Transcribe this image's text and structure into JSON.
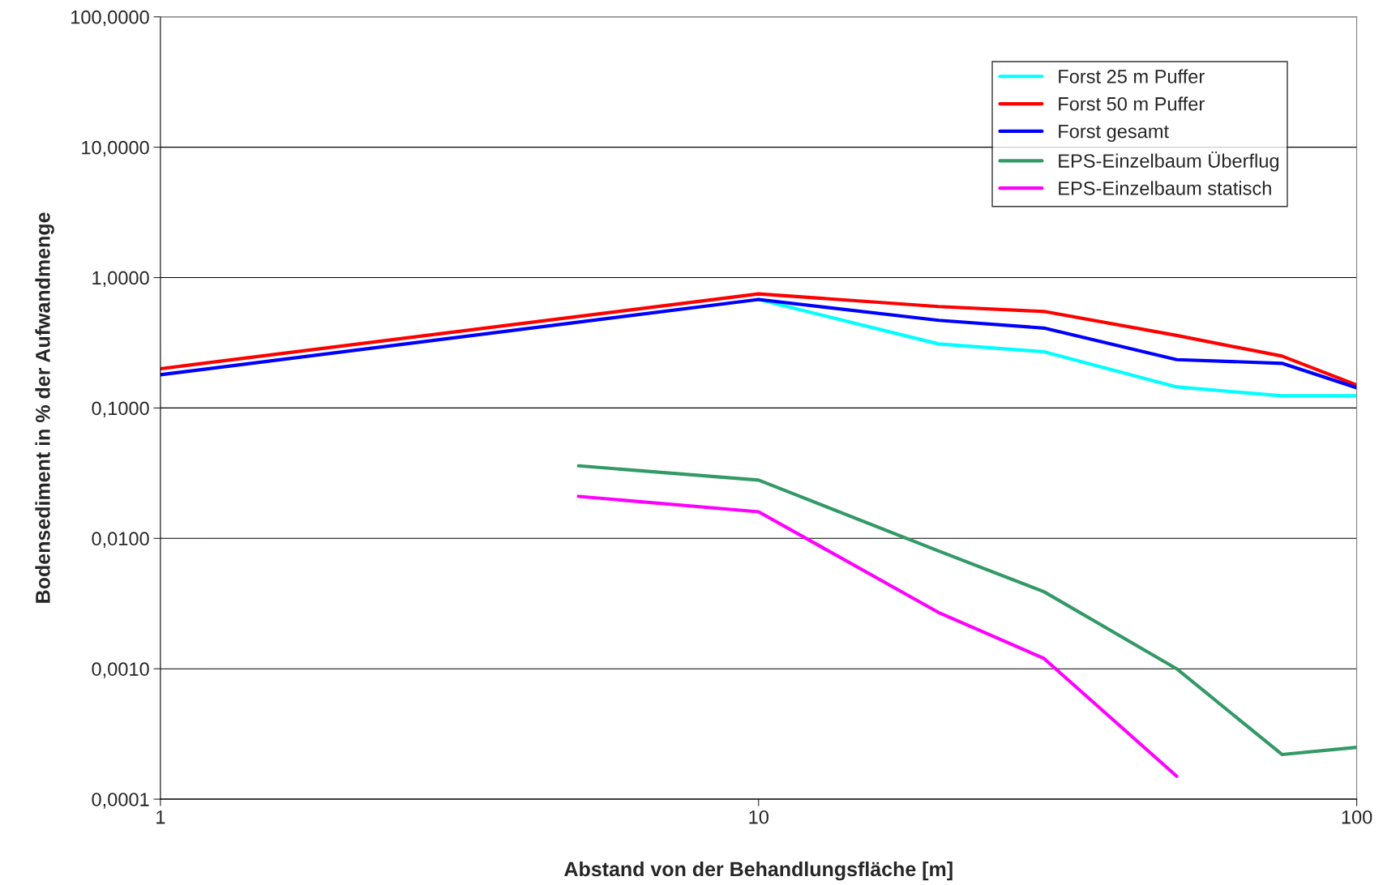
{
  "chart_data": {
    "type": "line",
    "xlabel": "Abstand von der Behandlungsfläche [m]",
    "ylabel": "Bodensediment in % der Aufwandmenge",
    "log": "xy",
    "grid": "y",
    "legend": "top right",
    "marker": "none",
    "line_style": "solid",
    "xlim": [
      1,
      100
    ],
    "xticks": [
      1,
      10,
      100
    ],
    "ylim": [
      0.0001,
      100
    ],
    "yticks": [
      {
        "value": 0.0001,
        "label": "0,0001"
      },
      {
        "value": 0.001,
        "label": "0,0010"
      },
      {
        "value": 0.01,
        "label": "0,0100"
      },
      {
        "value": 0.1,
        "label": "0,1000"
      },
      {
        "value": 1,
        "label": "1,0000"
      },
      {
        "value": 10,
        "label": "10,0000"
      },
      {
        "value": 100,
        "label": "100,0000"
      }
    ],
    "series": [
      {
        "name": "Forst 25 m Puffer",
        "color": "#00ffff",
        "x": [
          10,
          20,
          30,
          50,
          75,
          100
        ],
        "values": [
          0.68,
          0.31,
          0.27,
          0.145,
          0.124,
          0.124
        ]
      },
      {
        "name": "Forst 50 m Puffer",
        "color": "#ff0000",
        "x": [
          1,
          10,
          20,
          30,
          50,
          75,
          100
        ],
        "values": [
          0.2,
          0.75,
          0.6,
          0.55,
          0.36,
          0.25,
          0.15
        ]
      },
      {
        "name": "Forst gesamt",
        "color": "#0000ff",
        "x": [
          1,
          10,
          20,
          30,
          50,
          75,
          100
        ],
        "values": [
          0.18,
          0.68,
          0.47,
          0.41,
          0.235,
          0.22,
          0.143
        ]
      },
      {
        "name": "EPS-Einzelbaum Überflug",
        "color": "#339966",
        "x": [
          5,
          10,
          20,
          30,
          50,
          75,
          100
        ],
        "values": [
          0.036,
          0.028,
          0.008,
          0.0039,
          0.001,
          0.00022,
          0.00025
        ]
      },
      {
        "name": "EPS-Einzelbaum statisch",
        "color": "#ff00ff",
        "x": [
          5,
          10,
          20,
          30,
          50
        ],
        "values": [
          0.021,
          0.016,
          0.0027,
          0.0012,
          0.00015
        ]
      }
    ]
  }
}
